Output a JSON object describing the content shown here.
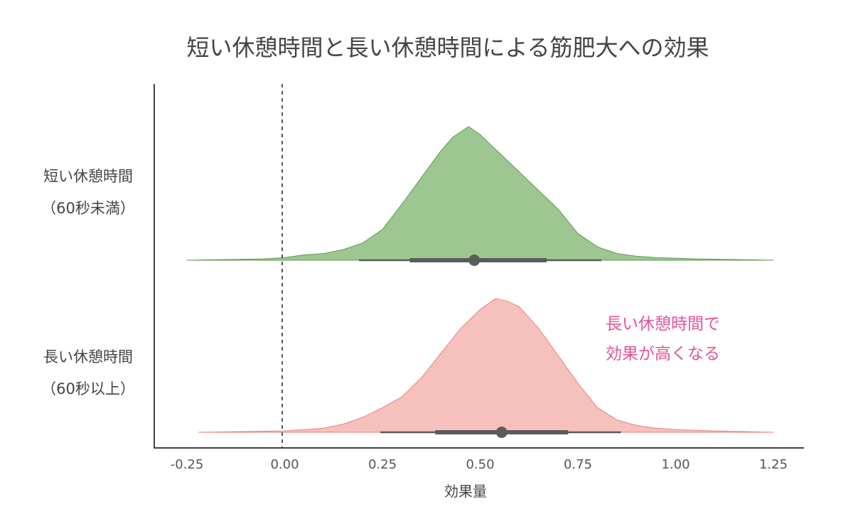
{
  "chart_data": {
    "type": "area",
    "title": "短い休憩時間と長い休憩時間による筋肥大への効果",
    "xlabel": "効果量",
    "xlim": [
      -0.25,
      1.25
    ],
    "xticks": [
      "-0.25",
      "0.00",
      "0.25",
      "0.50",
      "0.75",
      "1.00",
      "1.25"
    ],
    "reference_line_x": 0.0,
    "grid": false,
    "series": [
      {
        "name_line1": "短い休憩時間",
        "name_line2": "（60秒未満）",
        "color": "#9dc691",
        "edge_color": "#5f9a52",
        "density": {
          "x": [
            -0.25,
            -0.05,
            0.0,
            0.05,
            0.1,
            0.15,
            0.2,
            0.25,
            0.3,
            0.35,
            0.4,
            0.43,
            0.47,
            0.5,
            0.55,
            0.6,
            0.65,
            0.7,
            0.75,
            0.8,
            0.85,
            0.9,
            0.95,
            1.05,
            1.25
          ],
          "y": [
            0.0,
            0.01,
            0.02,
            0.04,
            0.05,
            0.08,
            0.13,
            0.23,
            0.42,
            0.62,
            0.82,
            0.92,
            1.0,
            0.94,
            0.8,
            0.66,
            0.52,
            0.38,
            0.2,
            0.1,
            0.05,
            0.03,
            0.02,
            0.01,
            0.0
          ]
        },
        "point_estimate": 0.485,
        "interval_66": [
          0.32,
          0.67
        ],
        "interval_95": [
          0.19,
          0.81
        ]
      },
      {
        "name_line1": "長い休憩時間",
        "name_line2": "（60秒以上）",
        "color": "#f6c0bd",
        "edge_color": "#e8837b",
        "density": {
          "x": [
            -0.22,
            0.0,
            0.1,
            0.15,
            0.2,
            0.25,
            0.3,
            0.35,
            0.4,
            0.45,
            0.5,
            0.54,
            0.57,
            0.6,
            0.65,
            0.7,
            0.75,
            0.8,
            0.85,
            0.9,
            0.95,
            1.0,
            1.1,
            1.25
          ],
          "y": [
            0.0,
            0.01,
            0.03,
            0.06,
            0.11,
            0.18,
            0.26,
            0.4,
            0.58,
            0.76,
            0.9,
            0.98,
            0.96,
            0.92,
            0.76,
            0.56,
            0.36,
            0.18,
            0.09,
            0.05,
            0.03,
            0.02,
            0.01,
            0.0
          ]
        },
        "point_estimate": 0.555,
        "interval_66": [
          0.385,
          0.725
        ],
        "interval_95": [
          0.245,
          0.86
        ]
      }
    ],
    "annotation": {
      "line1": "長い休憩時間で",
      "line2": "効果が高くなる",
      "color": "#e0559b"
    }
  }
}
